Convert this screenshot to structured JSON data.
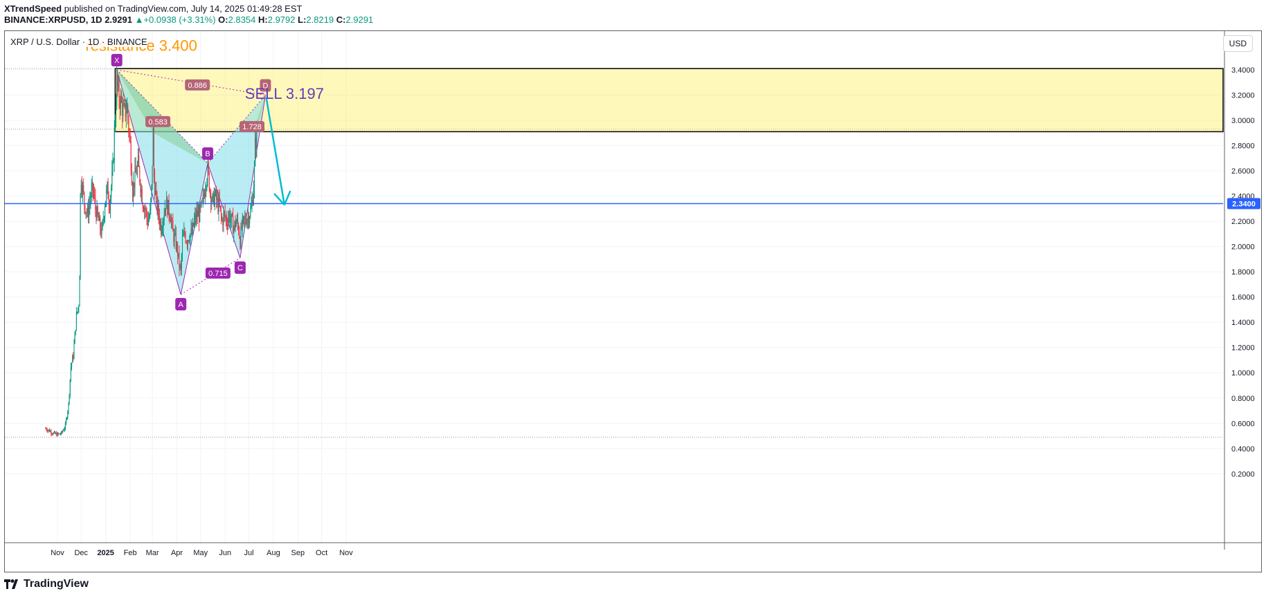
{
  "header": {
    "author": "XTrendSpeed",
    "published": "published on TradingView.com, July 14, 2025 01:49:28 EST",
    "symbol": "BINANCE:XRPUSD, 1D",
    "last": "2.9291",
    "change": "+0.0938 (+3.31%)",
    "open_label": "O:",
    "open": "2.8354",
    "high_label": "H:",
    "high": "2.9792",
    "low_label": "L:",
    "low": "2.8219",
    "close_label": "C:",
    "close": "2.9291"
  },
  "chart_title": "XRP / U.S. Dollar · 1D · BINANCE",
  "currency": "USD",
  "brand": "TradingView",
  "colors": {
    "up": "#089981",
    "down": "#f23645",
    "accent": "#2962ff",
    "purple": "#9c27b0"
  },
  "chart_data": {
    "type": "candlestick",
    "x_ticks": [
      {
        "label": "Nov",
        "day": 0
      },
      {
        "label": "Dec",
        "day": 30
      },
      {
        "label": "2025",
        "day": 61
      },
      {
        "label": "Feb",
        "day": 92
      },
      {
        "label": "Mar",
        "day": 120
      },
      {
        "label": "Apr",
        "day": 151
      },
      {
        "label": "May",
        "day": 181
      },
      {
        "label": "Jun",
        "day": 212
      },
      {
        "label": "Jul",
        "day": 242
      },
      {
        "label": "Aug",
        "day": 273
      },
      {
        "label": "Sep",
        "day": 304
      },
      {
        "label": "Oct",
        "day": 334
      },
      {
        "label": "Nov",
        "day": 365
      }
    ],
    "y_ticks": [
      "3.4000",
      "3.2000",
      "3.0000",
      "2.8000",
      "2.6000",
      "2.4000",
      "2.2000",
      "2.0000",
      "1.8000",
      "1.6000",
      "1.4000",
      "1.2000",
      "1.0000",
      "0.8000",
      "0.6000",
      "0.4000",
      "0.2000"
    ],
    "ylim": [
      0.1,
      3.75
    ],
    "price_line": {
      "value": 2.34,
      "label": "2.3400"
    },
    "close_path": [
      [
        -15,
        0.56
      ],
      [
        -10,
        0.54
      ],
      [
        -5,
        0.52
      ],
      [
        0,
        0.51
      ],
      [
        5,
        0.52
      ],
      [
        10,
        0.58
      ],
      [
        14,
        0.75
      ],
      [
        17,
        1.05
      ],
      [
        20,
        1.14
      ],
      [
        24,
        1.45
      ],
      [
        27,
        1.55
      ],
      [
        28,
        1.8
      ],
      [
        29,
        2.4
      ],
      [
        30,
        2.55
      ],
      [
        34,
        2.35
      ],
      [
        38,
        2.25
      ],
      [
        42,
        2.4
      ],
      [
        45,
        2.45
      ],
      [
        48,
        2.3
      ],
      [
        52,
        2.2
      ],
      [
        56,
        2.1
      ],
      [
        60,
        2.35
      ],
      [
        63,
        2.45
      ],
      [
        66,
        2.35
      ],
      [
        70,
        2.6
      ],
      [
        73,
        3.05
      ],
      [
        75,
        3.3
      ],
      [
        77,
        3.2
      ],
      [
        80,
        3.15
      ],
      [
        84,
        3.05
      ],
      [
        88,
        3.1
      ],
      [
        92,
        2.8
      ],
      [
        95,
        2.45
      ],
      [
        98,
        2.55
      ],
      [
        102,
        2.65
      ],
      [
        105,
        2.5
      ],
      [
        108,
        2.35
      ],
      [
        111,
        2.3
      ],
      [
        114,
        2.2
      ],
      [
        117,
        2.25
      ],
      [
        119,
        2.45
      ],
      [
        121,
        2.9
      ],
      [
        122,
        2.55
      ],
      [
        125,
        2.35
      ],
      [
        128,
        2.25
      ],
      [
        131,
        2.15
      ],
      [
        134,
        2.25
      ],
      [
        137,
        2.35
      ],
      [
        140,
        2.3
      ],
      [
        143,
        2.25
      ],
      [
        146,
        2.1
      ],
      [
        149,
        2.05
      ],
      [
        152,
        1.95
      ],
      [
        154,
        1.85
      ],
      [
        156,
        1.8
      ],
      [
        158,
        2.05
      ],
      [
        161,
        2.1
      ],
      [
        164,
        2.05
      ],
      [
        167,
        2.1
      ],
      [
        170,
        2.1
      ],
      [
        173,
        2.2
      ],
      [
        176,
        2.25
      ],
      [
        179,
        2.25
      ],
      [
        182,
        2.3
      ],
      [
        185,
        2.4
      ],
      [
        188,
        2.55
      ],
      [
        190,
        2.6
      ],
      [
        193,
        2.45
      ],
      [
        196,
        2.35
      ],
      [
        199,
        2.4
      ],
      [
        202,
        2.35
      ],
      [
        205,
        2.3
      ],
      [
        208,
        2.2
      ],
      [
        211,
        2.25
      ],
      [
        214,
        2.2
      ],
      [
        217,
        2.25
      ],
      [
        220,
        2.2
      ],
      [
        223,
        2.15
      ],
      [
        226,
        2.2
      ],
      [
        229,
        2.15
      ],
      [
        231,
        2.05
      ],
      [
        233,
        2.15
      ],
      [
        236,
        2.2
      ],
      [
        239,
        2.22
      ],
      [
        242,
        2.25
      ],
      [
        245,
        2.3
      ],
      [
        247,
        2.4
      ],
      [
        249,
        2.6
      ],
      [
        250,
        2.8
      ],
      [
        252,
        2.9
      ],
      [
        253,
        2.93
      ]
    ],
    "zone": {
      "top": 3.41,
      "bottom": 2.91,
      "x_start_day": 73
    },
    "pattern_points": [
      {
        "label": "X",
        "day": 75,
        "price": 3.4
      },
      {
        "label": "A",
        "day": 156,
        "price": 1.62
      },
      {
        "label": "B",
        "day": 190,
        "price": 2.66
      },
      {
        "label": "C",
        "day": 231,
        "price": 1.91
      },
      {
        "label": "D",
        "day": 263,
        "price": 3.2
      }
    ],
    "ratios": [
      {
        "label": "0.886",
        "day": 177,
        "price": 3.28
      },
      {
        "label": "0.583",
        "day": 127,
        "price": 2.99
      },
      {
        "label": "1.728",
        "day": 246,
        "price": 2.95
      },
      {
        "label": "0.715",
        "day": 203,
        "price": 1.79
      }
    ],
    "annotations": [
      {
        "text": "resistance 3.400",
        "color": "#ff9800",
        "day": 106,
        "price": 3.55
      },
      {
        "text": "SELL 3.197",
        "color": "#673ab7",
        "day": 287,
        "price": 3.17
      }
    ],
    "arrow": {
      "from_day": 264,
      "from_price": 3.18,
      "to_day": 287,
      "to_price": 2.33,
      "color": "#00bcd4"
    }
  }
}
